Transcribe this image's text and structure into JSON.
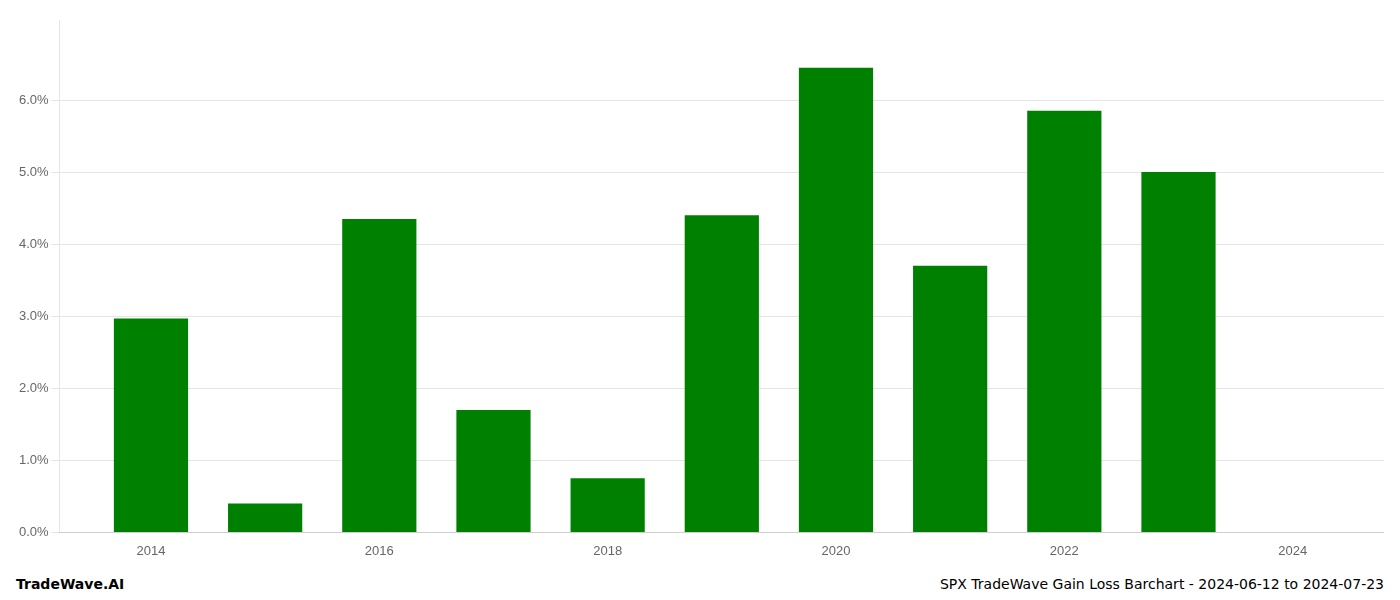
{
  "chart_data": {
    "type": "bar",
    "title": "SPX TradeWave Gain Loss Barchart - 2024-06-12 to 2024-07-23",
    "annotations": [
      "TradeWave.AI"
    ],
    "x": [
      2014,
      2015,
      2016,
      2017,
      2018,
      2019,
      2020,
      2021,
      2022,
      2023
    ],
    "values": [
      0.0297,
      0.004,
      0.0435,
      0.017,
      0.0075,
      0.044,
      0.0645,
      0.037,
      0.0585,
      0.05
    ],
    "color": "#008000",
    "xlim": [
      2013.2,
      2024.8
    ],
    "xticks": [
      2014,
      2016,
      2018,
      2020,
      2022,
      2024
    ],
    "ylim": [
      0,
      0.071
    ],
    "yticks": [
      {
        "value": 0.0,
        "label": "0.0%"
      },
      {
        "value": 0.01,
        "label": "1.0%"
      },
      {
        "value": 0.02,
        "label": "2.0%"
      },
      {
        "value": 0.03,
        "label": "3.0%"
      },
      {
        "value": 0.04,
        "label": "4.0%"
      },
      {
        "value": 0.05,
        "label": "5.0%"
      },
      {
        "value": 0.06,
        "label": "6.0%"
      }
    ],
    "grid": true
  }
}
